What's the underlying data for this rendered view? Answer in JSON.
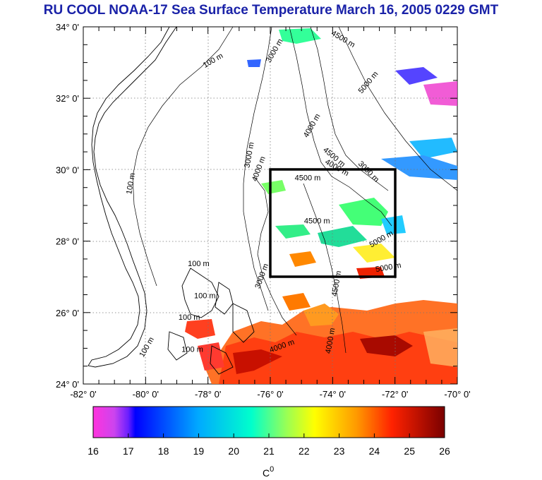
{
  "title": "RU COOL  NOAA-17 Sea Surface Temperature March 16, 2005 0229 GMT",
  "map": {
    "lon_range": [
      -82,
      -70
    ],
    "lat_range": [
      24,
      34
    ],
    "lat_ticks": [
      {
        "value": 34,
        "label": "34° 0'"
      },
      {
        "value": 32,
        "label": "32° 0'"
      },
      {
        "value": 30,
        "label": "30° 0'"
      },
      {
        "value": 28,
        "label": "28° 0'"
      },
      {
        "value": 26,
        "label": "26° 0'"
      },
      {
        "value": 24,
        "label": "24° 0'"
      }
    ],
    "lon_ticks": [
      {
        "value": -82,
        "label": "-82° 0'"
      },
      {
        "value": -80,
        "label": "-80° 0'"
      },
      {
        "value": -78,
        "label": "-78° 0'"
      },
      {
        "value": -76,
        "label": "-76° 0'"
      },
      {
        "value": -74,
        "label": "-74° 0'"
      },
      {
        "value": -72,
        "label": "-72° 0'"
      },
      {
        "value": -70,
        "label": "-70° 0'"
      }
    ],
    "grid": "dotted",
    "region_box": {
      "lon_min": -76,
      "lon_max": -72,
      "lat_min": 27,
      "lat_max": 30
    },
    "contour_labels": [
      {
        "text": "100 m",
        "lon": -77.8,
        "lat": 33.0,
        "rot": -30
      },
      {
        "text": "100 m",
        "lon": -80.4,
        "lat": 29.6,
        "rot": -80
      },
      {
        "text": "100 m",
        "lon": -78.3,
        "lat": 27.3,
        "rot": 0
      },
      {
        "text": "100 m",
        "lon": -78.6,
        "lat": 25.8,
        "rot": 0
      },
      {
        "text": "100 m",
        "lon": -78.5,
        "lat": 24.9,
        "rot": 0
      },
      {
        "text": "100 m",
        "lon": -79.9,
        "lat": 25.0,
        "rot": -60
      },
      {
        "text": "100 m",
        "lon": -78.1,
        "lat": 26.4,
        "rot": 0
      },
      {
        "text": "3000 m",
        "lon": -76.6,
        "lat": 30.4,
        "rot": -80
      },
      {
        "text": "3000 m",
        "lon": -75.8,
        "lat": 33.3,
        "rot": -60
      },
      {
        "text": "3000 m",
        "lon": -76.2,
        "lat": 27.0,
        "rot": -70
      },
      {
        "text": "3000 m",
        "lon": -72.9,
        "lat": 29.9,
        "rot": 45
      },
      {
        "text": "4000 m",
        "lon": -76.3,
        "lat": 30.0,
        "rot": -70
      },
      {
        "text": "4000 m",
        "lon": -74.6,
        "lat": 31.2,
        "rot": -60
      },
      {
        "text": "4000 m",
        "lon": -73.9,
        "lat": 30.0,
        "rot": 30
      },
      {
        "text": "4500 m",
        "lon": -73.7,
        "lat": 33.6,
        "rot": 30
      },
      {
        "text": "4500 m",
        "lon": -74.8,
        "lat": 29.7,
        "rot": 0
      },
      {
        "text": "4500 m",
        "lon": -74.0,
        "lat": 30.3,
        "rot": 40
      },
      {
        "text": "4500 m",
        "lon": -74.5,
        "lat": 28.5,
        "rot": 0
      },
      {
        "text": "4500 m",
        "lon": -73.8,
        "lat": 26.8,
        "rot": -80
      },
      {
        "text": "5000 m",
        "lon": -72.8,
        "lat": 32.4,
        "rot": -50
      },
      {
        "text": "5000 m",
        "lon": -72.4,
        "lat": 28.0,
        "rot": -30
      },
      {
        "text": "5000 m",
        "lon": -72.2,
        "lat": 27.2,
        "rot": -10
      },
      {
        "text": "4000 m",
        "lon": -75.6,
        "lat": 25.0,
        "rot": -20
      },
      {
        "text": "4000 m",
        "lon": -74.0,
        "lat": 25.2,
        "rot": -80
      }
    ],
    "colors": {
      "land_line": "#000000",
      "box": "#000000"
    }
  },
  "colorbar": {
    "min": 16,
    "max": 26,
    "ticks": [
      "16",
      "17",
      "18",
      "19",
      "20",
      "21",
      "22",
      "23",
      "24",
      "25",
      "26"
    ],
    "unit_label": "C",
    "unit_superscript": "0",
    "stops": [
      "#ff33dd",
      "#0000ff",
      "#00c8ff",
      "#33ff99",
      "#ffff00",
      "#ff9900",
      "#ff2200",
      "#800000"
    ]
  }
}
